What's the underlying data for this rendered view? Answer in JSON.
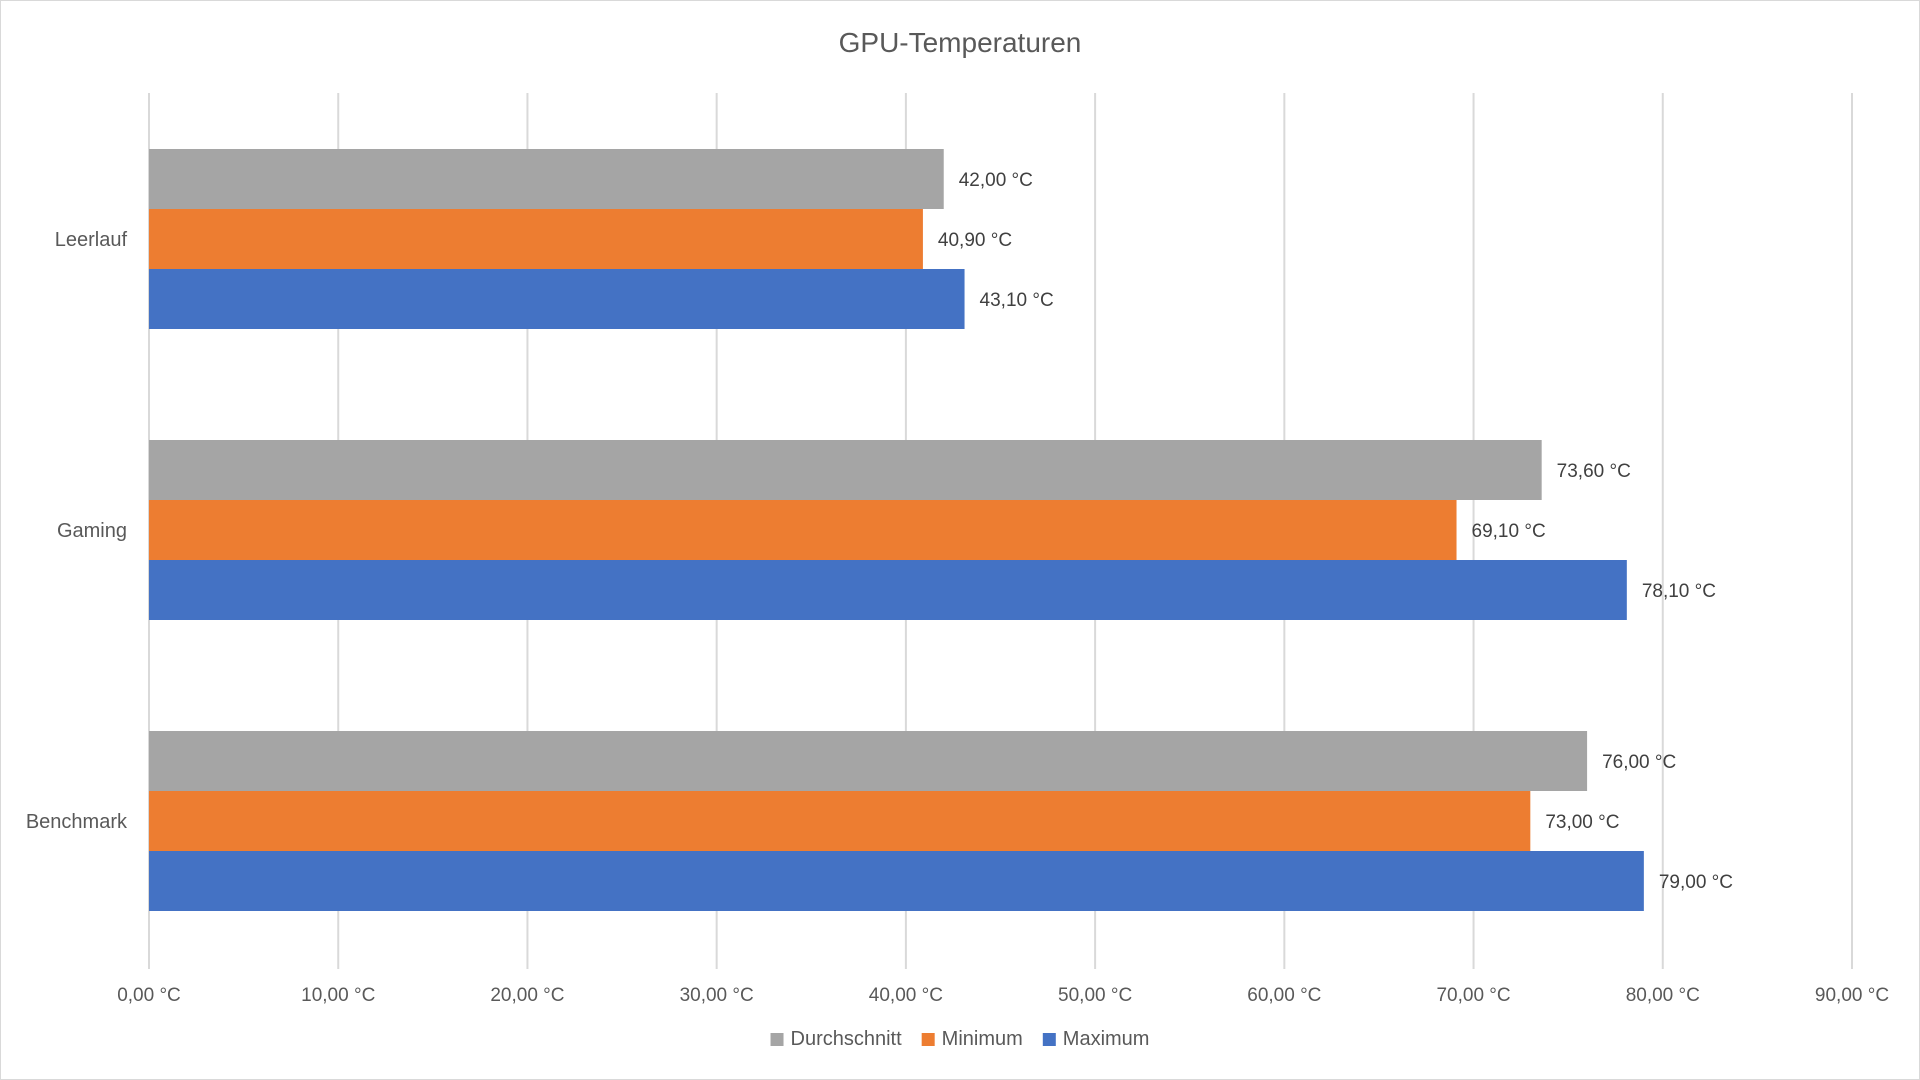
{
  "chart_data": {
    "type": "bar",
    "orientation": "horizontal",
    "title": "GPU-Temperaturen",
    "xlabel": "",
    "ylabel": "",
    "xlim": [
      0,
      90
    ],
    "tick_values": [
      0,
      10,
      20,
      30,
      40,
      50,
      60,
      70,
      80,
      90
    ],
    "tick_labels": [
      "0,00 °C",
      "10,00 °C",
      "20,00 °C",
      "30,00 °C",
      "40,00 °C",
      "50,00 °C",
      "60,00 °C",
      "70,00 °C",
      "80,00 °C",
      "90,00 °C"
    ],
    "grid": true,
    "legend_position": "bottom",
    "categories": [
      "Leerlauf",
      "Gaming",
      "Benchmark"
    ],
    "series": [
      {
        "name": "Durchschnitt",
        "color": "#a5a5a5",
        "values": [
          42.0,
          73.6,
          76.0
        ],
        "labels": [
          "42,00 °C",
          "73,60 °C",
          "76,00 °C"
        ]
      },
      {
        "name": "Minimum",
        "color": "#ed7d31",
        "values": [
          40.9,
          69.1,
          73.0
        ],
        "labels": [
          "40,90 °C",
          "69,10 °C",
          "73,00 °C"
        ]
      },
      {
        "name": "Maximum",
        "color": "#4472c4",
        "values": [
          43.1,
          78.1,
          79.0
        ],
        "labels": [
          "43,10 °C",
          "78,10 °C",
          "79,00 °C"
        ]
      }
    ]
  }
}
